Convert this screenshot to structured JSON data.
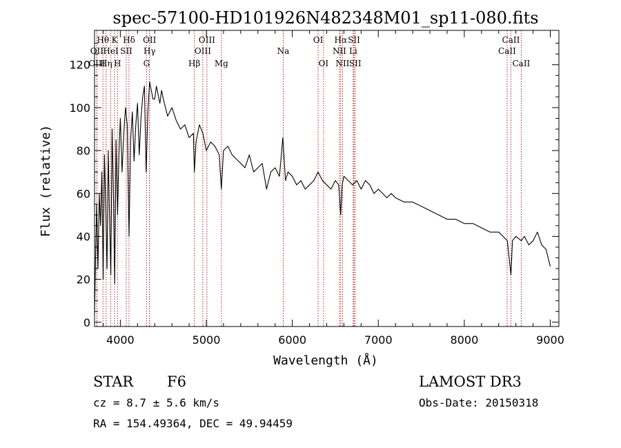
{
  "chart_data": {
    "type": "line",
    "title": "spec-57100-HD101926N482348M01_sp11-080.fits",
    "xlabel": "Wavelength (Å)",
    "ylabel": "Flux (relative)",
    "xlim": [
      3700,
      9100
    ],
    "ylim": [
      -2,
      136
    ],
    "xticks": [
      4000,
      5000,
      6000,
      7000,
      8000,
      9000
    ],
    "yticks": [
      0,
      20,
      40,
      60,
      80,
      100,
      120
    ],
    "xtick_labels": [
      "4000",
      "5000",
      "6000",
      "7000",
      "8000",
      "9000"
    ],
    "ytick_labels": [
      "0",
      "20",
      "40",
      "60",
      "80",
      "100",
      "120"
    ],
    "series": [
      {
        "name": "Flux",
        "x": [
          3700,
          3712,
          3725,
          3740,
          3755,
          3770,
          3785,
          3800,
          3815,
          3830,
          3845,
          3860,
          3875,
          3889,
          3905,
          3920,
          3934,
          3950,
          3968,
          3985,
          4000,
          4020,
          4040,
          4060,
          4080,
          4101,
          4120,
          4140,
          4160,
          4180,
          4200,
          4220,
          4240,
          4260,
          4280,
          4300,
          4320,
          4340,
          4360,
          4380,
          4400,
          4420,
          4440,
          4460,
          4480,
          4500,
          4550,
          4600,
          4650,
          4700,
          4750,
          4800,
          4850,
          4861,
          4880,
          4920,
          4960,
          5000,
          5050,
          5100,
          5150,
          5175,
          5200,
          5250,
          5300,
          5350,
          5400,
          5450,
          5500,
          5550,
          5600,
          5650,
          5700,
          5750,
          5800,
          5850,
          5890,
          5920,
          5950,
          6000,
          6050,
          6100,
          6150,
          6200,
          6250,
          6300,
          6350,
          6400,
          6450,
          6500,
          6540,
          6563,
          6580,
          6600,
          6650,
          6700,
          6750,
          6800,
          6850,
          6900,
          6950,
          7000,
          7050,
          7100,
          7150,
          7200,
          7300,
          7400,
          7500,
          7600,
          7700,
          7800,
          7900,
          8000,
          8100,
          8200,
          8300,
          8400,
          8450,
          8500,
          8542,
          8560,
          8600,
          8662,
          8700,
          8750,
          8800,
          8850,
          8900,
          8950,
          9000
        ],
        "values": [
          4,
          30,
          55,
          25,
          60,
          45,
          70,
          20,
          78,
          55,
          25,
          80,
          48,
          22,
          90,
          60,
          18,
          85,
          50,
          80,
          95,
          70,
          88,
          100,
          92,
          40,
          85,
          98,
          75,
          92,
          102,
          78,
          95,
          105,
          110,
          70,
          98,
          112,
          108,
          104,
          104,
          110,
          106,
          102,
          108,
          104,
          96,
          100,
          94,
          90,
          92,
          86,
          88,
          70,
          84,
          92,
          88,
          80,
          84,
          82,
          78,
          62,
          80,
          82,
          78,
          76,
          74,
          72,
          78,
          70,
          72,
          74,
          62,
          70,
          72,
          68,
          86,
          66,
          70,
          68,
          64,
          66,
          62,
          64,
          66,
          70,
          66,
          64,
          62,
          66,
          64,
          50,
          64,
          68,
          66,
          64,
          66,
          62,
          66,
          64,
          60,
          62,
          60,
          58,
          60,
          58,
          56,
          56,
          54,
          52,
          50,
          48,
          48,
          46,
          46,
          44,
          42,
          42,
          40,
          38,
          22,
          38,
          40,
          38,
          40,
          36,
          38,
          42,
          36,
          34,
          26
        ]
      }
    ],
    "line_markers": [
      {
        "name": "Hθ",
        "x": 3798,
        "row": 1
      },
      {
        "name": "OII",
        "x": 3727,
        "row": 2
      },
      {
        "name": "OIII",
        "x": 3727,
        "row": 3
      },
      {
        "name": "Hη",
        "x": 3835,
        "row": 3
      },
      {
        "name": "HeI",
        "x": 3889,
        "row": 2
      },
      {
        "name": "K",
        "x": 3934,
        "row": 1
      },
      {
        "name": "H",
        "x": 3968,
        "row": 3
      },
      {
        "name": "SII",
        "x": 4069,
        "row": 2
      },
      {
        "name": "Hδ",
        "x": 4101,
        "row": 1
      },
      {
        "name": "G",
        "x": 4305,
        "row": 3
      },
      {
        "name": "OII",
        "x": 4340,
        "row": 1
      },
      {
        "name": "Hγ",
        "x": 4340,
        "row": 2
      },
      {
        "name": "Hβ",
        "x": 4861,
        "row": 3
      },
      {
        "name": "OIII",
        "x": 4959,
        "row": 2
      },
      {
        "name": "OIII",
        "x": 5007,
        "row": 1
      },
      {
        "name": "Mg",
        "x": 5175,
        "row": 3
      },
      {
        "name": "Na",
        "x": 5894,
        "row": 2
      },
      {
        "name": "OI",
        "x": 6300,
        "row": 1
      },
      {
        "name": "OI",
        "x": 6363,
        "row": 3
      },
      {
        "name": "Hα",
        "x": 6563,
        "row": 1
      },
      {
        "name": "NII",
        "x": 6548,
        "row": 2
      },
      {
        "name": "NII",
        "x": 6584,
        "row": 3
      },
      {
        "name": "SII",
        "x": 6717,
        "row": 1
      },
      {
        "name": "Li",
        "x": 6708,
        "row": 2
      },
      {
        "name": "SII",
        "x": 6731,
        "row": 3
      },
      {
        "name": "CaII",
        "x": 8542,
        "row": 1
      },
      {
        "name": "CaII",
        "x": 8498,
        "row": 2
      },
      {
        "name": "CaII",
        "x": 8662,
        "row": 3
      }
    ]
  },
  "info": {
    "object_class": "STAR",
    "subclass": "F6",
    "survey": "LAMOST DR3",
    "redshift_text": "cz = 8.7 ± 5.6 km/s",
    "obs_date": "Obs-Date: 20150318",
    "coords_text": "RA = 154.49364, DEC =  49.94459"
  }
}
